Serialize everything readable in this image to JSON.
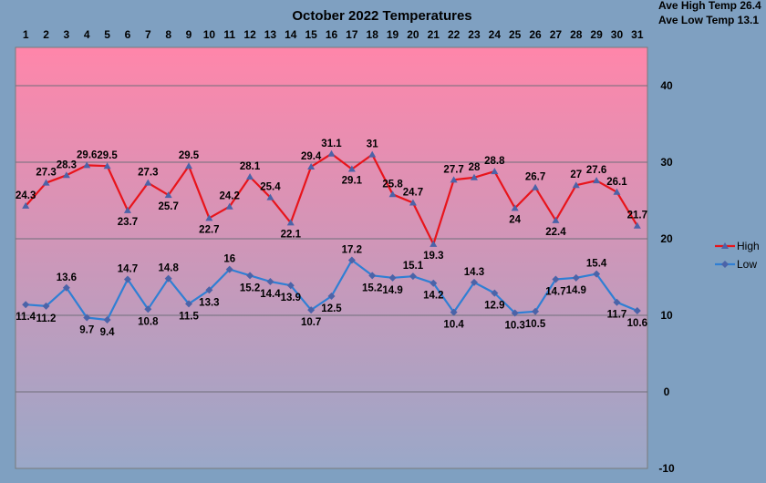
{
  "chart_data": {
    "type": "line",
    "title": "October 2022 Temperatures",
    "summary": [
      "Ave High Temp 26.4",
      "Ave Low Temp 13.1"
    ],
    "categories": [
      "1",
      "2",
      "3",
      "4",
      "5",
      "6",
      "7",
      "8",
      "9",
      "10",
      "11",
      "12",
      "13",
      "14",
      "15",
      "16",
      "17",
      "18",
      "19",
      "20",
      "21",
      "22",
      "23",
      "24",
      "25",
      "26",
      "27",
      "28",
      "29",
      "30",
      "31"
    ],
    "ylim": [
      -10,
      45
    ],
    "yticks": [
      -10,
      0,
      10,
      20,
      30,
      40
    ],
    "grid": true,
    "legend_position": "right",
    "series": [
      {
        "name": "High",
        "color": "#e8141b",
        "values": [
          24.3,
          27.3,
          28.3,
          29.6,
          29.5,
          23.7,
          27.3,
          25.7,
          29.5,
          22.7,
          24.2,
          28.1,
          25.4,
          22.1,
          29.4,
          31.1,
          29.1,
          31,
          25.8,
          24.7,
          19.3,
          27.7,
          28,
          28.8,
          24,
          26.7,
          22.4,
          27,
          27.6,
          26.1,
          21.7
        ]
      },
      {
        "name": "Low",
        "color": "#2f7fd4",
        "values": [
          11.4,
          11.2,
          13.6,
          9.7,
          9.4,
          14.7,
          10.8,
          14.8,
          11.5,
          13.3,
          16,
          15.2,
          14.4,
          13.9,
          10.7,
          12.5,
          17.2,
          15.2,
          14.9,
          15.1,
          14.2,
          10.4,
          14.3,
          12.9,
          10.3,
          10.5,
          14.7,
          14.9,
          15.4,
          11.7,
          10.6
        ]
      }
    ],
    "colors": {
      "background": "#7fa0c1",
      "plot_top": "#ff86aa",
      "plot_bottom": "#9aa8c8",
      "marker": "#4b63a8"
    }
  }
}
